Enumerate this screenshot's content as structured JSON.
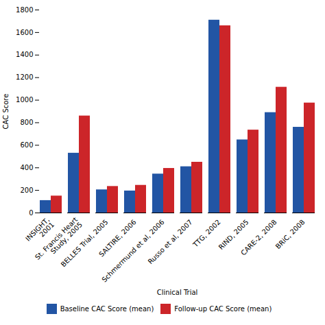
{
  "chart_data": {
    "type": "bar",
    "categories": [
      "INSIGHT,\n2001",
      "St. Francis Heart\nStudy, 2005",
      "BELLES Trial, 2005",
      "SALTIRE, 2006",
      "Schmermund et al, 2006",
      "Russo et al, 2007",
      "TTG, 2002",
      "RIND, 2005",
      "CARE-2, 2008",
      "BRiC, 2008"
    ],
    "series": [
      {
        "name": "Baseline CAC Score (mean)",
        "color": "#2255A4",
        "values": [
          110,
          530,
          205,
          195,
          345,
          410,
          1710,
          648,
          890,
          760
        ]
      },
      {
        "name": "Follow-up CAC Score (mean)",
        "color": "#CC2529",
        "values": [
          150,
          860,
          235,
          245,
          395,
          450,
          1660,
          735,
          1115,
          975
        ]
      }
    ],
    "xlabel": "Clinical Trial",
    "ylabel": "CAC Score",
    "ylim": [
      0,
      1800
    ],
    "yticks": [
      0,
      200,
      400,
      600,
      800,
      1000,
      1200,
      1400,
      1600,
      1800
    ],
    "grid": false,
    "legend": "bottom"
  }
}
